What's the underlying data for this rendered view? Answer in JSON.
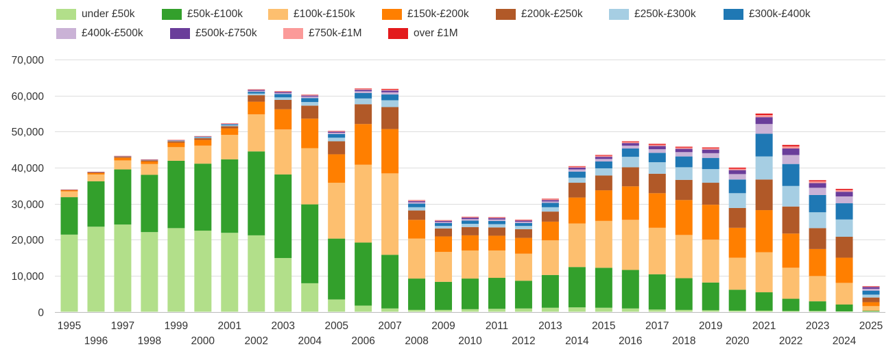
{
  "chart_data": {
    "type": "bar",
    "stacked": true,
    "title": "",
    "xlabel": "",
    "ylabel": "",
    "ylim": [
      0,
      70000
    ],
    "yticks": [
      0,
      10000,
      20000,
      30000,
      40000,
      50000,
      60000,
      70000
    ],
    "ytick_labels": [
      "0",
      "10,000",
      "20,000",
      "30,000",
      "40,000",
      "50,000",
      "60,000",
      "70,000"
    ],
    "grid": true,
    "legend_position": "top",
    "categories": [
      "1995",
      "1996",
      "1997",
      "1998",
      "1999",
      "2000",
      "2001",
      "2002",
      "2003",
      "2004",
      "2005",
      "2006",
      "2007",
      "2008",
      "2009",
      "2010",
      "2011",
      "2012",
      "2013",
      "2014",
      "2015",
      "2016",
      "2017",
      "2018",
      "2019",
      "2020",
      "2021",
      "2022",
      "2023",
      "2024",
      "2025"
    ],
    "series": [
      {
        "name": "under £50k",
        "color": "#b2df8a",
        "values": [
          21400,
          23600,
          24200,
          22100,
          23200,
          22500,
          21900,
          21200,
          14900,
          7900,
          3400,
          1700,
          900,
          500,
          500,
          700,
          800,
          900,
          1100,
          1200,
          1100,
          900,
          600,
          500,
          400,
          300,
          300,
          200,
          200,
          100,
          50
        ]
      },
      {
        "name": "£50k-£100k",
        "color": "#33a02c",
        "values": [
          10400,
          12600,
          15300,
          15900,
          18700,
          18600,
          20400,
          23300,
          23200,
          21900,
          16900,
          17500,
          14900,
          8700,
          7800,
          8500,
          8600,
          7700,
          9100,
          11200,
          11100,
          10700,
          9800,
          8800,
          7700,
          5800,
          5100,
          3400,
          2700,
          1900,
          200
        ]
      },
      {
        "name": "£100k-£150k",
        "color": "#fdbf6f",
        "values": [
          1600,
          1900,
          2500,
          3000,
          3800,
          5000,
          6800,
          10300,
          12500,
          15600,
          15500,
          21600,
          22600,
          11100,
          8300,
          7800,
          7600,
          7500,
          9600,
          12100,
          13000,
          13900,
          12900,
          12000,
          11900,
          8900,
          11100,
          8600,
          7000,
          6000,
          1300
        ]
      },
      {
        "name": "£150k-£200k",
        "color": "#ff7f00",
        "values": [
          300,
          400,
          700,
          700,
          1200,
          1600,
          1800,
          3500,
          5600,
          8200,
          7900,
          11300,
          12300,
          5200,
          4300,
          4200,
          4100,
          4400,
          5200,
          7200,
          8500,
          9300,
          9600,
          9700,
          9700,
          8300,
          11700,
          9500,
          7500,
          7000,
          1100
        ]
      },
      {
        "name": "£200k-£250k",
        "color": "#b15928",
        "values": [
          100,
          200,
          300,
          300,
          400,
          500,
          600,
          1800,
          2600,
          3600,
          3600,
          5500,
          6100,
          2600,
          2200,
          2300,
          2300,
          2400,
          2800,
          4100,
          4100,
          5300,
          5400,
          5600,
          6100,
          5500,
          8500,
          7500,
          5800,
          5800,
          1300
        ]
      },
      {
        "name": "£250k-£300k",
        "color": "#a6cee3",
        "values": [
          50,
          60,
          100,
          100,
          130,
          200,
          250,
          450,
          700,
          1000,
          1000,
          1600,
          1900,
          900,
          700,
          900,
          900,
          900,
          1200,
          1400,
          2000,
          2900,
          3200,
          3500,
          3800,
          4100,
          6400,
          5700,
          4400,
          4800,
          800
        ]
      },
      {
        "name": "£300k-£400k",
        "color": "#1f78b4",
        "values": [
          20,
          30,
          60,
          70,
          100,
          150,
          250,
          500,
          900,
          1100,
          1000,
          1500,
          1600,
          1000,
          800,
          900,
          900,
          800,
          1200,
          1700,
          1900,
          2300,
          2600,
          3000,
          3100,
          3800,
          6300,
          6100,
          4800,
          4500,
          1100
        ]
      },
      {
        "name": "£400k-£500k",
        "color": "#cab2d6",
        "values": [
          10,
          20,
          30,
          30,
          50,
          70,
          100,
          250,
          300,
          400,
          350,
          500,
          600,
          400,
          300,
          400,
          400,
          350,
          400,
          600,
          700,
          800,
          1000,
          1200,
          1300,
          1500,
          2700,
          2500,
          2000,
          1900,
          500
        ]
      },
      {
        "name": "£500k-£750k",
        "color": "#6a3d9a",
        "values": [
          10,
          20,
          30,
          30,
          50,
          70,
          100,
          250,
          300,
          300,
          300,
          400,
          500,
          300,
          300,
          400,
          400,
          350,
          400,
          500,
          600,
          700,
          900,
          900,
          1000,
          1100,
          1900,
          1800,
          1300,
          1300,
          500
        ]
      },
      {
        "name": "£750k-£1M",
        "color": "#fb9a99",
        "values": [
          5,
          10,
          10,
          10,
          20,
          30,
          40,
          80,
          100,
          120,
          120,
          200,
          250,
          150,
          100,
          150,
          150,
          150,
          200,
          250,
          300,
          300,
          350,
          350,
          350,
          400,
          600,
          600,
          500,
          500,
          150
        ]
      },
      {
        "name": "over £1M",
        "color": "#e31a1c",
        "values": [
          5,
          10,
          10,
          10,
          20,
          30,
          40,
          80,
          100,
          100,
          100,
          150,
          200,
          100,
          100,
          100,
          100,
          100,
          150,
          150,
          200,
          200,
          250,
          250,
          250,
          300,
          400,
          400,
          300,
          300,
          100
        ]
      }
    ]
  }
}
